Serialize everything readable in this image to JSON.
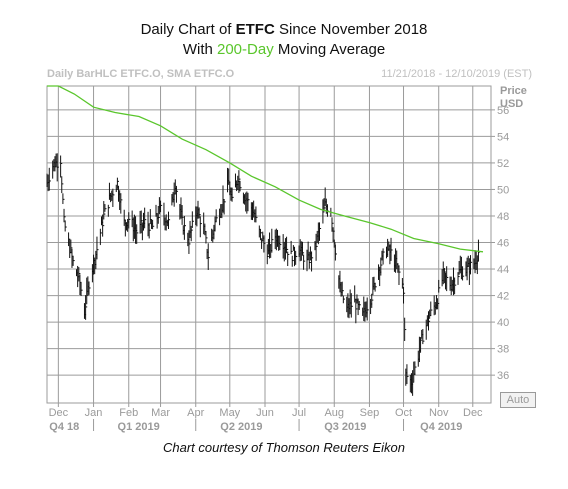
{
  "header": {
    "line1_pre": "Daily Chart of ",
    "ticker": "ETFC",
    "line1_post": " Since November 2018",
    "line2_pre": "With ",
    "ma_label": "200-Day",
    "line2_post": " Moving Average"
  },
  "subheader": {
    "left": "Daily BarHLC ETFC.O, SMA ETFC.O",
    "right": "11/21/2018 - 12/10/2019 (EST)"
  },
  "price_label": "Price",
  "currency_label": "USD",
  "auto_label": "Auto",
  "credit": "Chart courtesy of Thomson Reuters Eikon",
  "colors": {
    "bars": "#111111",
    "sma": "#5ac62c",
    "grid": "#9b9b9b",
    "axis_text": "#9a9a9a"
  },
  "chart_data": {
    "type": "line",
    "title": "Daily Chart of ETFC Since November 2018 With 200-Day Moving Average",
    "y_ticks": [
      36,
      38,
      40,
      42,
      44,
      46,
      48,
      50,
      52,
      54,
      56
    ],
    "ylim": [
      33.9,
      57.8
    ],
    "month_ticks": [
      "Dec",
      "Jan",
      "Feb",
      "Mar",
      "Apr",
      "May",
      "Jun",
      "Jul",
      "Aug",
      "Sep",
      "Oct",
      "Nov",
      "Dec"
    ],
    "quarter_ticks": [
      "Q4 18",
      "Q1 2019",
      "Q2 2019",
      "Q3 2019",
      "Q4 2019"
    ],
    "x_start": "2018-11-21",
    "x_end": "2019-12-10",
    "series": [
      {
        "name": "Daily BarHLC ETFC.O",
        "style": "hlc_bars",
        "close_points": [
          [
            "2018-11-21",
            50.5
          ],
          [
            "2018-11-26",
            51.8
          ],
          [
            "2018-12-03",
            52.3
          ],
          [
            "2018-12-06",
            47.5
          ],
          [
            "2018-12-10",
            46.0
          ],
          [
            "2018-12-14",
            44.5
          ],
          [
            "2018-12-20",
            43.0
          ],
          [
            "2018-12-24",
            40.8
          ],
          [
            "2018-12-28",
            43.0
          ],
          [
            "2019-01-04",
            45.5
          ],
          [
            "2019-01-10",
            48.0
          ],
          [
            "2019-01-16",
            49.5
          ],
          [
            "2019-01-22",
            50.5
          ],
          [
            "2019-01-28",
            47.5
          ],
          [
            "2019-02-01",
            47.8
          ],
          [
            "2019-02-08",
            46.8
          ],
          [
            "2019-02-15",
            47.5
          ],
          [
            "2019-02-22",
            47.2
          ],
          [
            "2019-03-01",
            48.5
          ],
          [
            "2019-03-08",
            47.5
          ],
          [
            "2019-03-14",
            50.5
          ],
          [
            "2019-03-20",
            47.5
          ],
          [
            "2019-03-26",
            46.2
          ],
          [
            "2019-04-02",
            48.5
          ],
          [
            "2019-04-08",
            47.0
          ],
          [
            "2019-04-12",
            45.0
          ],
          [
            "2019-04-18",
            47.5
          ],
          [
            "2019-04-24",
            48.8
          ],
          [
            "2019-04-30",
            50.5
          ],
          [
            "2019-05-03",
            49.0
          ],
          [
            "2019-05-08",
            51.0
          ],
          [
            "2019-05-14",
            49.5
          ],
          [
            "2019-05-21",
            48.5
          ],
          [
            "2019-05-28",
            46.5
          ],
          [
            "2019-06-04",
            45.2
          ],
          [
            "2019-06-10",
            46.5
          ],
          [
            "2019-06-17",
            46.0
          ],
          [
            "2019-06-24",
            45.0
          ],
          [
            "2019-07-01",
            45.5
          ],
          [
            "2019-07-08",
            44.5
          ],
          [
            "2019-07-15",
            45.5
          ],
          [
            "2019-07-19",
            47.0
          ],
          [
            "2019-07-24",
            48.8
          ],
          [
            "2019-07-29",
            48.5
          ],
          [
            "2019-08-02",
            45.5
          ],
          [
            "2019-08-06",
            42.5
          ],
          [
            "2019-08-12",
            41.0
          ],
          [
            "2019-08-19",
            41.5
          ],
          [
            "2019-08-26",
            40.5
          ],
          [
            "2019-09-03",
            42.0
          ],
          [
            "2019-09-09",
            44.0
          ],
          [
            "2019-09-16",
            45.5
          ],
          [
            "2019-09-20",
            45.2
          ],
          [
            "2019-09-26",
            44.0
          ],
          [
            "2019-10-01",
            42.5
          ],
          [
            "2019-10-03",
            36.0
          ],
          [
            "2019-10-08",
            35.5
          ],
          [
            "2019-10-14",
            37.5
          ],
          [
            "2019-10-18",
            39.0
          ],
          [
            "2019-10-24",
            40.5
          ],
          [
            "2019-10-30",
            41.5
          ],
          [
            "2019-11-05",
            43.5
          ],
          [
            "2019-11-12",
            42.8
          ],
          [
            "2019-11-19",
            43.8
          ],
          [
            "2019-11-26",
            44.0
          ],
          [
            "2019-12-03",
            44.5
          ],
          [
            "2019-12-06",
            45.3
          ]
        ]
      },
      {
        "name": "SMA ETFC.O",
        "style": "line",
        "points": [
          [
            "2018-11-21",
            57.8
          ],
          [
            "2018-12-01",
            57.8
          ],
          [
            "2018-12-15",
            57.2
          ],
          [
            "2019-01-01",
            56.2
          ],
          [
            "2019-01-20",
            55.8
          ],
          [
            "2019-02-10",
            55.5
          ],
          [
            "2019-03-01",
            54.8
          ],
          [
            "2019-03-20",
            53.8
          ],
          [
            "2019-04-10",
            53.0
          ],
          [
            "2019-05-01",
            52.0
          ],
          [
            "2019-05-20",
            51.0
          ],
          [
            "2019-06-10",
            50.2
          ],
          [
            "2019-07-01",
            49.2
          ],
          [
            "2019-07-20",
            48.5
          ],
          [
            "2019-08-10",
            48.0
          ],
          [
            "2019-09-01",
            47.5
          ],
          [
            "2019-09-20",
            47.0
          ],
          [
            "2019-10-10",
            46.3
          ],
          [
            "2019-11-01",
            45.9
          ],
          [
            "2019-11-20",
            45.5
          ],
          [
            "2019-12-10",
            45.3
          ]
        ]
      }
    ]
  }
}
